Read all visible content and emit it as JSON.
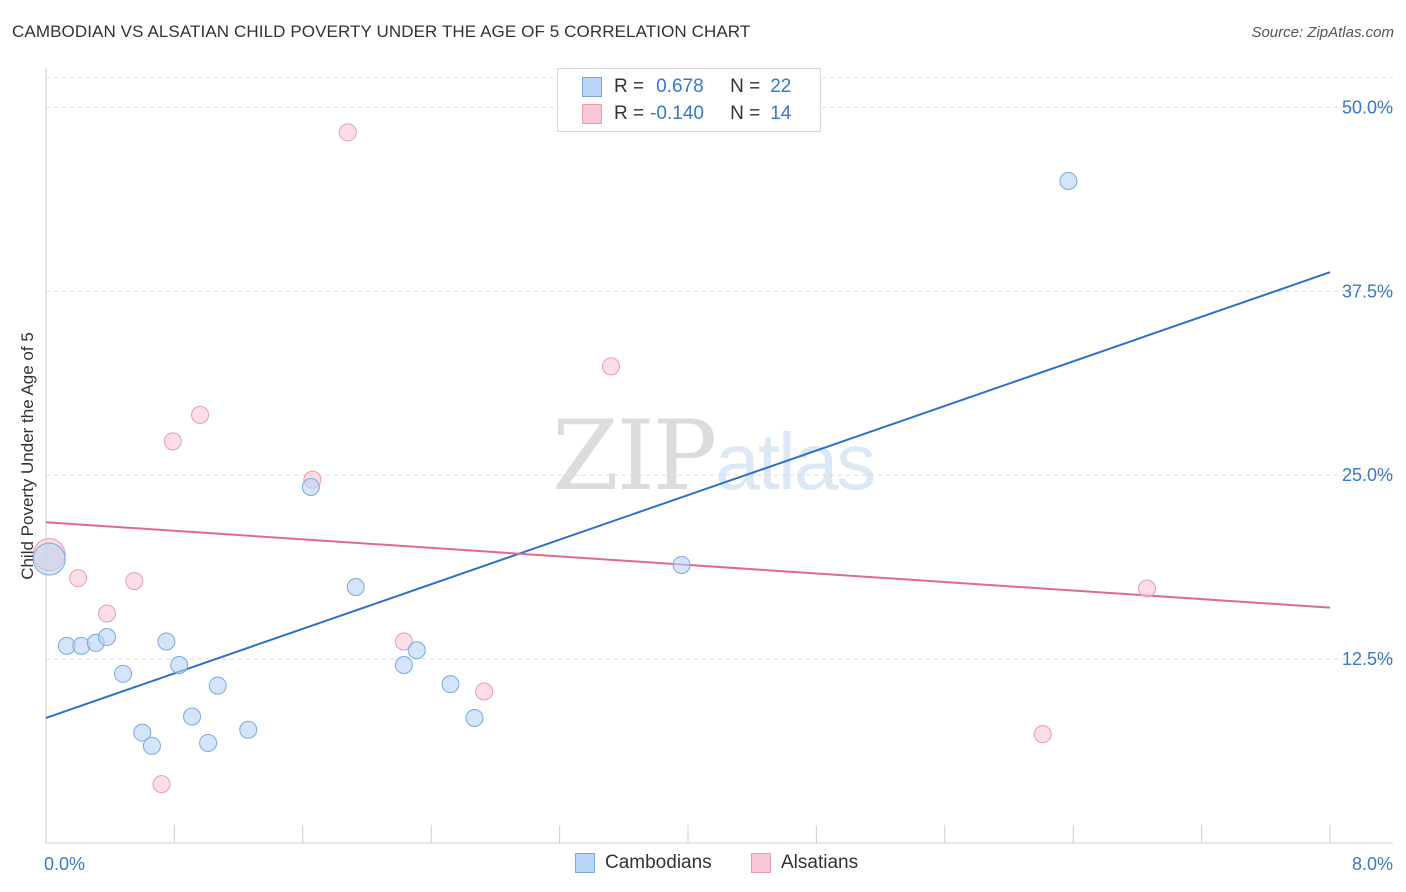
{
  "header": {
    "title": "CAMBODIAN VS ALSATIAN CHILD POVERTY UNDER THE AGE OF 5 CORRELATION CHART",
    "source": "Source: ZipAtlas.com"
  },
  "colors": {
    "cambodian_fill": "#b9d4f5",
    "cambodian_stroke": "#7aa9e0",
    "cambodian_line": "#2f6fd0",
    "alsatian_fill": "#f9c8d6",
    "alsatian_stroke": "#ee9ab3",
    "alsatian_line": "#e06b92",
    "grid": "#dddddd",
    "tick_label": "#3a78c9"
  },
  "legend": {
    "rows": [
      {
        "r_label": "R =",
        "r_value": "0.678",
        "n_label": "N =",
        "n_value": "22"
      },
      {
        "r_label": "R =",
        "r_value": "-0.140",
        "n_label": "N =",
        "n_value": "14"
      }
    ]
  },
  "bottom_legend": {
    "cambodians": "Cambodians",
    "alsatians": "Alsatians"
  },
  "watermark": {
    "zip": "ZIP",
    "atlas": "atlas"
  },
  "chart_data": {
    "type": "scatter",
    "title": "CAMBODIAN VS ALSATIAN CHILD POVERTY UNDER THE AGE OF 5 CORRELATION CHART",
    "xlabel": "",
    "ylabel": "Child Poverty Under the Age of 5",
    "xlim": [
      0,
      8
    ],
    "ylim": [
      0,
      52
    ],
    "x_tick_labels": [
      {
        "value": 0,
        "label": "0.0%"
      },
      {
        "value": 8,
        "label": "8.0%"
      }
    ],
    "y_ticks": [
      {
        "value": 12.5,
        "label": "12.5%"
      },
      {
        "value": 25,
        "label": "25.0%"
      },
      {
        "value": 37.5,
        "label": "37.5%"
      },
      {
        "value": 50,
        "label": "50.0%"
      }
    ],
    "series": [
      {
        "name": "Cambodians",
        "r": 0.678,
        "n": 22,
        "points": [
          {
            "x": 0.02,
            "y": 19.3,
            "big": true
          },
          {
            "x": 0.13,
            "y": 13.4
          },
          {
            "x": 0.22,
            "y": 13.4
          },
          {
            "x": 0.31,
            "y": 13.6
          },
          {
            "x": 0.38,
            "y": 14.0
          },
          {
            "x": 0.48,
            "y": 11.5
          },
          {
            "x": 0.6,
            "y": 7.5
          },
          {
            "x": 0.66,
            "y": 6.6
          },
          {
            "x": 0.75,
            "y": 13.7
          },
          {
            "x": 0.83,
            "y": 12.1
          },
          {
            "x": 0.91,
            "y": 8.6
          },
          {
            "x": 1.01,
            "y": 6.8
          },
          {
            "x": 1.07,
            "y": 10.7
          },
          {
            "x": 1.26,
            "y": 7.7
          },
          {
            "x": 1.65,
            "y": 24.2
          },
          {
            "x": 1.93,
            "y": 17.4
          },
          {
            "x": 2.23,
            "y": 12.1
          },
          {
            "x": 2.31,
            "y": 13.1
          },
          {
            "x": 2.52,
            "y": 10.8
          },
          {
            "x": 2.67,
            "y": 8.5
          },
          {
            "x": 3.96,
            "y": 18.9
          },
          {
            "x": 6.37,
            "y": 45.0
          }
        ],
        "trend": {
          "x0": 0,
          "y0": 8.5,
          "x1": 8,
          "y1": 38.8
        }
      },
      {
        "name": "Alsatians",
        "r": -0.14,
        "n": 14,
        "points": [
          {
            "x": 0.02,
            "y": 19.6,
            "big": true
          },
          {
            "x": 0.2,
            "y": 18.0
          },
          {
            "x": 0.38,
            "y": 15.6
          },
          {
            "x": 0.55,
            "y": 17.8
          },
          {
            "x": 0.72,
            "y": 4.0
          },
          {
            "x": 0.79,
            "y": 27.3
          },
          {
            "x": 0.96,
            "y": 29.1
          },
          {
            "x": 1.66,
            "y": 24.7
          },
          {
            "x": 1.88,
            "y": 48.3
          },
          {
            "x": 2.23,
            "y": 13.7
          },
          {
            "x": 2.73,
            "y": 10.3
          },
          {
            "x": 3.52,
            "y": 32.4
          },
          {
            "x": 6.21,
            "y": 7.4
          },
          {
            "x": 6.86,
            "y": 17.3
          }
        ],
        "trend": {
          "x0": 0,
          "y0": 21.8,
          "x1": 8,
          "y1": 16.0
        }
      }
    ]
  }
}
